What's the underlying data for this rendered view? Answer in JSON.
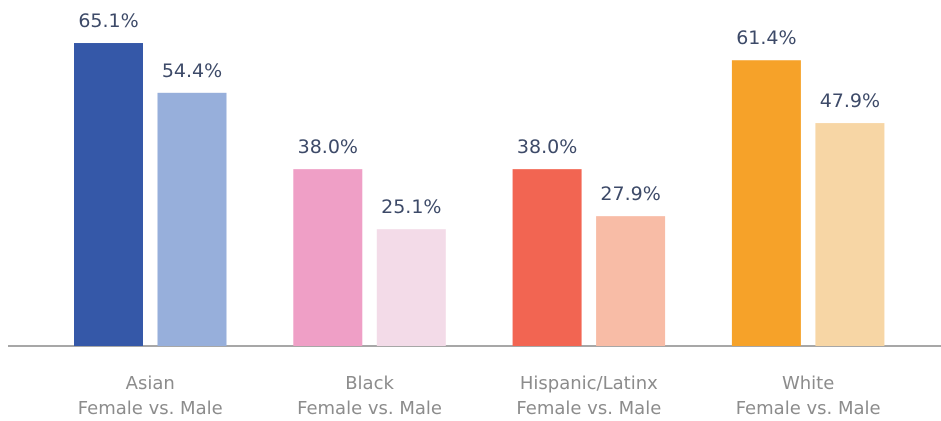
{
  "chart_data": {
    "type": "bar",
    "categories": [
      [
        "Asian",
        "Female vs. Male"
      ],
      [
        "Black",
        "Female vs. Male"
      ],
      [
        "Hispanic/Latinx",
        "Female vs. Male"
      ],
      [
        "White",
        "Female vs. Male"
      ]
    ],
    "series": [
      {
        "colors": [
          "#3558a8",
          "#ef9fc6",
          "#f26552",
          "#f6a229"
        ],
        "values": [
          65.1,
          38.0,
          38.0,
          61.4
        ],
        "value_labels": [
          "65.1%",
          "38.0%",
          "38.0%",
          "61.4%"
        ]
      },
      {
        "colors": [
          "#97afdb",
          "#f3dbe8",
          "#f8bca6",
          "#f7d6a5"
        ],
        "values": [
          54.4,
          25.1,
          27.9,
          47.9
        ],
        "value_labels": [
          "54.4%",
          "25.1%",
          "27.9%",
          "47.9%"
        ]
      }
    ]
  }
}
